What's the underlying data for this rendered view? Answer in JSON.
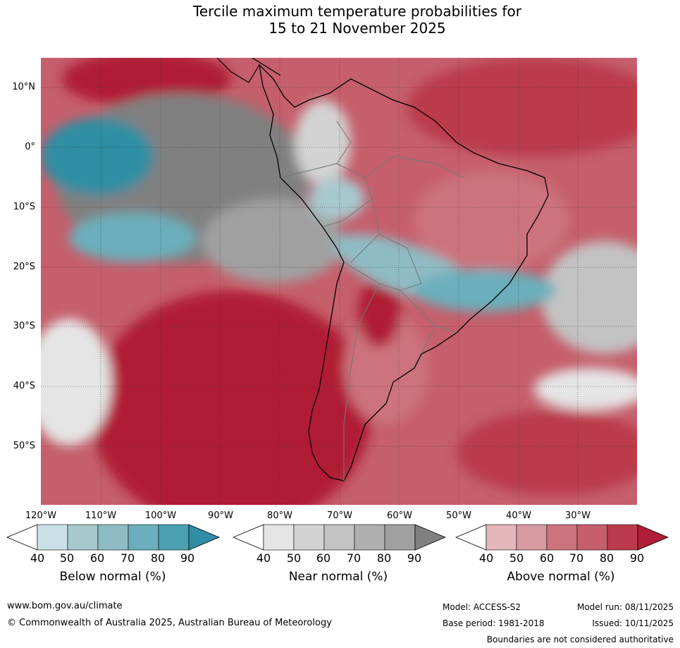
{
  "title": {
    "line1": "Tercile maximum temperature probabilities for",
    "line2": "15 to 21 November 2025"
  },
  "map": {
    "lat_labels": [
      "10°N",
      "0°",
      "10°S",
      "20°S",
      "30°S",
      "40°S",
      "50°S"
    ],
    "lon_labels": [
      "120°W",
      "110°W",
      "100°W",
      "90°W",
      "80°W",
      "70°W",
      "60°W",
      "50°W",
      "40°W",
      "30°W"
    ]
  },
  "legends": {
    "below": {
      "label": "Below normal (%)",
      "ticks": [
        "40",
        "50",
        "60",
        "70",
        "80",
        "90"
      ]
    },
    "near": {
      "label": "Near normal (%)",
      "ticks": [
        "40",
        "50",
        "60",
        "70",
        "80",
        "90"
      ]
    },
    "above": {
      "label": "Above normal (%)",
      "ticks": [
        "40",
        "50",
        "60",
        "70",
        "80",
        "90"
      ]
    }
  },
  "colors": {
    "below": [
      "#c9e1e6",
      "#a7c8cd",
      "#8fbcc4",
      "#6aafbb",
      "#4aa0b1",
      "#2f8ea3"
    ],
    "near": [
      "#e5e5e5",
      "#d3d3d3",
      "#c3c3c3",
      "#b0b0b0",
      "#a0a0a0",
      "#808080"
    ],
    "above": [
      "#e3b7bc",
      "#d79aa1",
      "#cc737d",
      "#c55f6b",
      "#bb3a4c",
      "#b11c36"
    ]
  },
  "footer": {
    "website": "www.bom.gov.au/climate",
    "copyright": "© Commonwealth of Australia 2025, Australian Bureau of Meteorology",
    "model": "Model: ACCESS-S2",
    "base_period": "Base period: 1981-2018",
    "model_run": "Model run: 08/11/2025",
    "issued": "Issued: 10/11/2025",
    "disclaimer": "Boundaries are not considered authoritative"
  }
}
